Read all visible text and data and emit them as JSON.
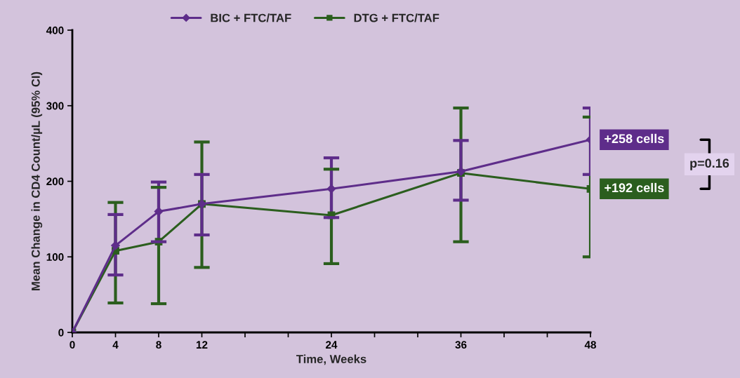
{
  "chart_data": {
    "type": "line",
    "ylabel": "Mean Change in CD4 Count/µL (95% CI)",
    "xlabel": "Time, Weeks",
    "x": [
      0,
      4,
      8,
      12,
      24,
      36,
      48
    ],
    "series": [
      {
        "name": "BIC + FTC/TAF",
        "color": "#5e2d8a",
        "marker": "diamond",
        "values": [
          0,
          115,
          160,
          170,
          190,
          213,
          255
        ],
        "errors": [
          null,
          [
            76,
            156
          ],
          [
            120,
            199
          ],
          [
            129,
            209
          ],
          [
            152,
            231
          ],
          [
            175,
            254
          ],
          [
            209,
            297
          ]
        ]
      },
      {
        "name": "DTG + FTC/TAF",
        "color": "#2b5e1e",
        "marker": "square",
        "values": [
          0,
          108,
          120,
          170,
          155,
          211,
          190
        ],
        "errors": [
          null,
          [
            39,
            172
          ],
          [
            38,
            192
          ],
          [
            86,
            252
          ],
          [
            91,
            216
          ],
          [
            120,
            297
          ],
          [
            100,
            285
          ]
        ]
      }
    ],
    "xlim": [
      0,
      48
    ],
    "ylim": [
      0,
      400
    ],
    "xticks": [
      0,
      4,
      8,
      12,
      {
        "value": 16,
        "label": null
      },
      {
        "value": 20,
        "label": null
      },
      24,
      {
        "value": 28,
        "label": null
      },
      {
        "value": 32,
        "label": null
      },
      36,
      {
        "value": 40,
        "label": null
      },
      {
        "value": 44,
        "label": null
      },
      48
    ],
    "yticks": [
      0,
      100,
      200,
      300,
      400
    ],
    "annotations": [
      {
        "text": "+258 cells",
        "x": 48,
        "y": 255
      },
      {
        "text": "+192 cells",
        "x": 48,
        "y": 190
      },
      "p=0.16"
    ],
    "legend": "top",
    "grid": false,
    "line_style": "solid"
  }
}
